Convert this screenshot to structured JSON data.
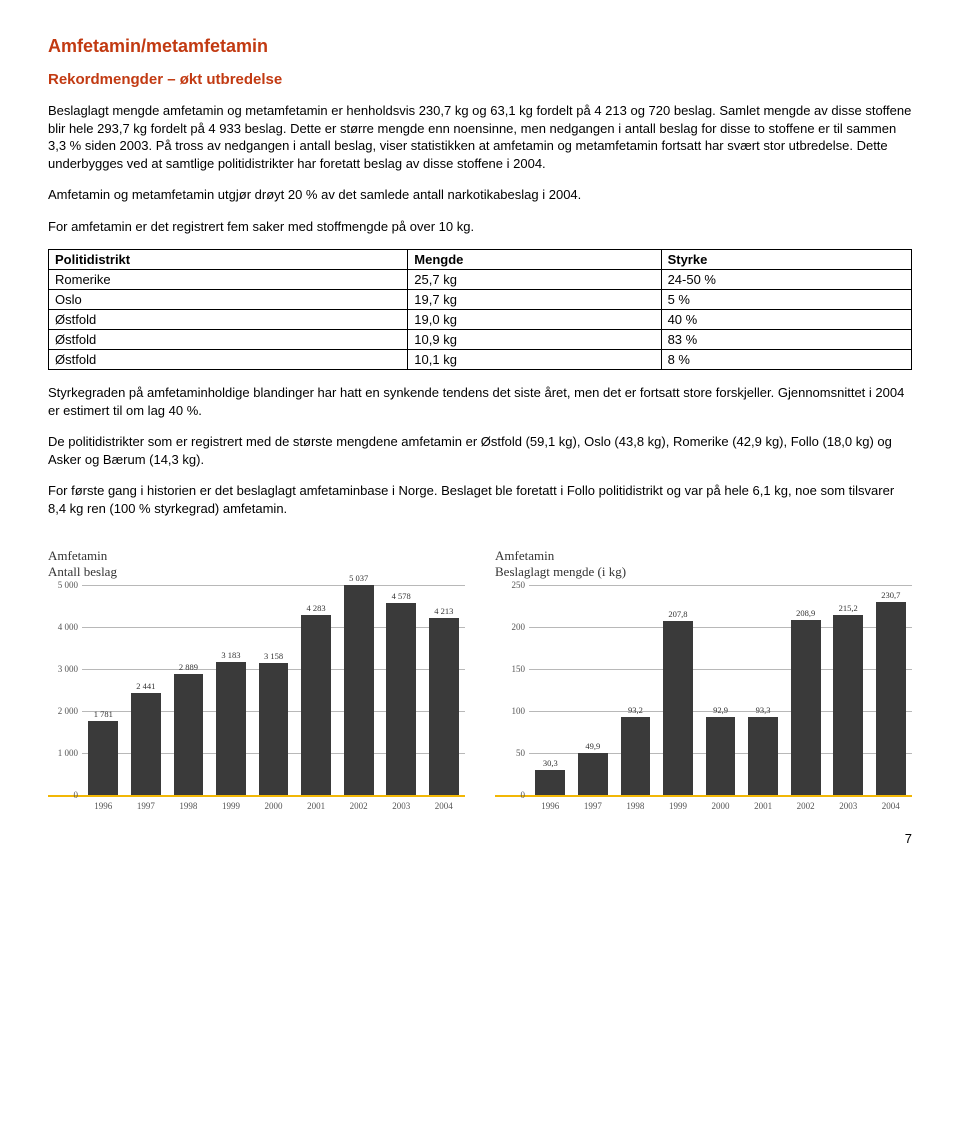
{
  "title": "Amfetamin/metamfetamin",
  "subtitle": "Rekordmengder – økt utbredelse",
  "paragraphs": {
    "p1": "Beslaglagt mengde amfetamin og metamfetamin er henholdsvis 230,7 kg og 63,1 kg fordelt på 4 213 og 720 beslag. Samlet mengde av disse stoffene blir hele 293,7 kg fordelt på 4 933 beslag. Dette er større mengde enn noensinne, men nedgangen i antall beslag for disse to stoffene er til sammen 3,3 % siden 2003. På tross av nedgangen i antall beslag, viser statistikken at amfetamin og metamfetamin fortsatt har svært stor utbredelse. Dette underbygges ved at samtlige politidistrikter har foretatt beslag av disse stoffene i 2004.",
    "p2": "Amfetamin og metamfetamin utgjør drøyt 20 % av det samlede antall narkotikabeslag i 2004.",
    "p3": "For amfetamin er det registrert fem saker med stoffmengde på over 10 kg.",
    "p4": "Styrkegraden på amfetaminholdige blandinger har hatt en synkende tendens det siste året, men det er fortsatt store forskjeller. Gjennomsnittet i 2004 er estimert til om lag 40 %.",
    "p5": "De politidistrikter som er registrert med de største mengdene amfetamin er Østfold (59,1 kg), Oslo (43,8 kg), Romerike (42,9 kg), Follo (18,0 kg) og Asker og Bærum (14,3 kg).",
    "p6": "For første gang i historien er det beslaglagt amfetaminbase i Norge. Beslaget ble foretatt i Follo politidistrikt og var på hele 6,1 kg, noe som tilsvarer 8,4 kg ren (100 % styrkegrad) amfetamin."
  },
  "table": {
    "columns": [
      "Politidistrikt",
      "Mengde",
      "Styrke"
    ],
    "rows": [
      [
        "Romerike",
        "25,7 kg",
        "24-50 %"
      ],
      [
        "Oslo",
        "19,7 kg",
        "5 %"
      ],
      [
        "Østfold",
        "19,0 kg",
        "40 %"
      ],
      [
        "Østfold",
        "10,9 kg",
        "83 %"
      ],
      [
        "Østfold",
        "10,1 kg",
        "8 %"
      ]
    ]
  },
  "chart1": {
    "caption_line1": "Amfetamin",
    "caption_line2": "Antall beslag",
    "type": "bar",
    "bar_color": "#3a3a3a",
    "axis_color": "#f2b705",
    "grid_color": "#b8b8b8",
    "ymax": 5000,
    "yticks": [
      0,
      1000,
      2000,
      3000,
      4000,
      5000
    ],
    "ytick_labels": [
      "0",
      "1 000",
      "2 000",
      "3 000",
      "4 000",
      "5 000"
    ],
    "categories": [
      "1996",
      "1997",
      "1998",
      "1999",
      "2000",
      "2001",
      "2002",
      "2003",
      "2004"
    ],
    "values": [
      1781,
      2441,
      2889,
      3183,
      3158,
      4283,
      5037,
      4578,
      4213
    ],
    "value_labels": [
      "1 781",
      "2 441",
      "2 889",
      "3 183",
      "3 158",
      "4 283",
      "5 037",
      "4 578",
      "4 213"
    ]
  },
  "chart2": {
    "caption_line1": "Amfetamin",
    "caption_line2": "Beslaglagt mengde (i kg)",
    "type": "bar",
    "bar_color": "#3a3a3a",
    "axis_color": "#f2b705",
    "grid_color": "#b8b8b8",
    "ymax": 250,
    "yticks": [
      0,
      50,
      100,
      150,
      200,
      250
    ],
    "ytick_labels": [
      "0",
      "50",
      "100",
      "150",
      "200",
      "250"
    ],
    "categories": [
      "1996",
      "1997",
      "1998",
      "1999",
      "2000",
      "2001",
      "2002",
      "2003",
      "2004"
    ],
    "values": [
      30.3,
      49.9,
      93.2,
      207.8,
      92.9,
      93.3,
      208.9,
      215.2,
      230.7
    ],
    "value_labels": [
      "30,3",
      "49,9",
      "93,2",
      "207,8",
      "92,9",
      "93,3",
      "208,9",
      "215,2",
      "230,7"
    ]
  },
  "page_number": "7"
}
